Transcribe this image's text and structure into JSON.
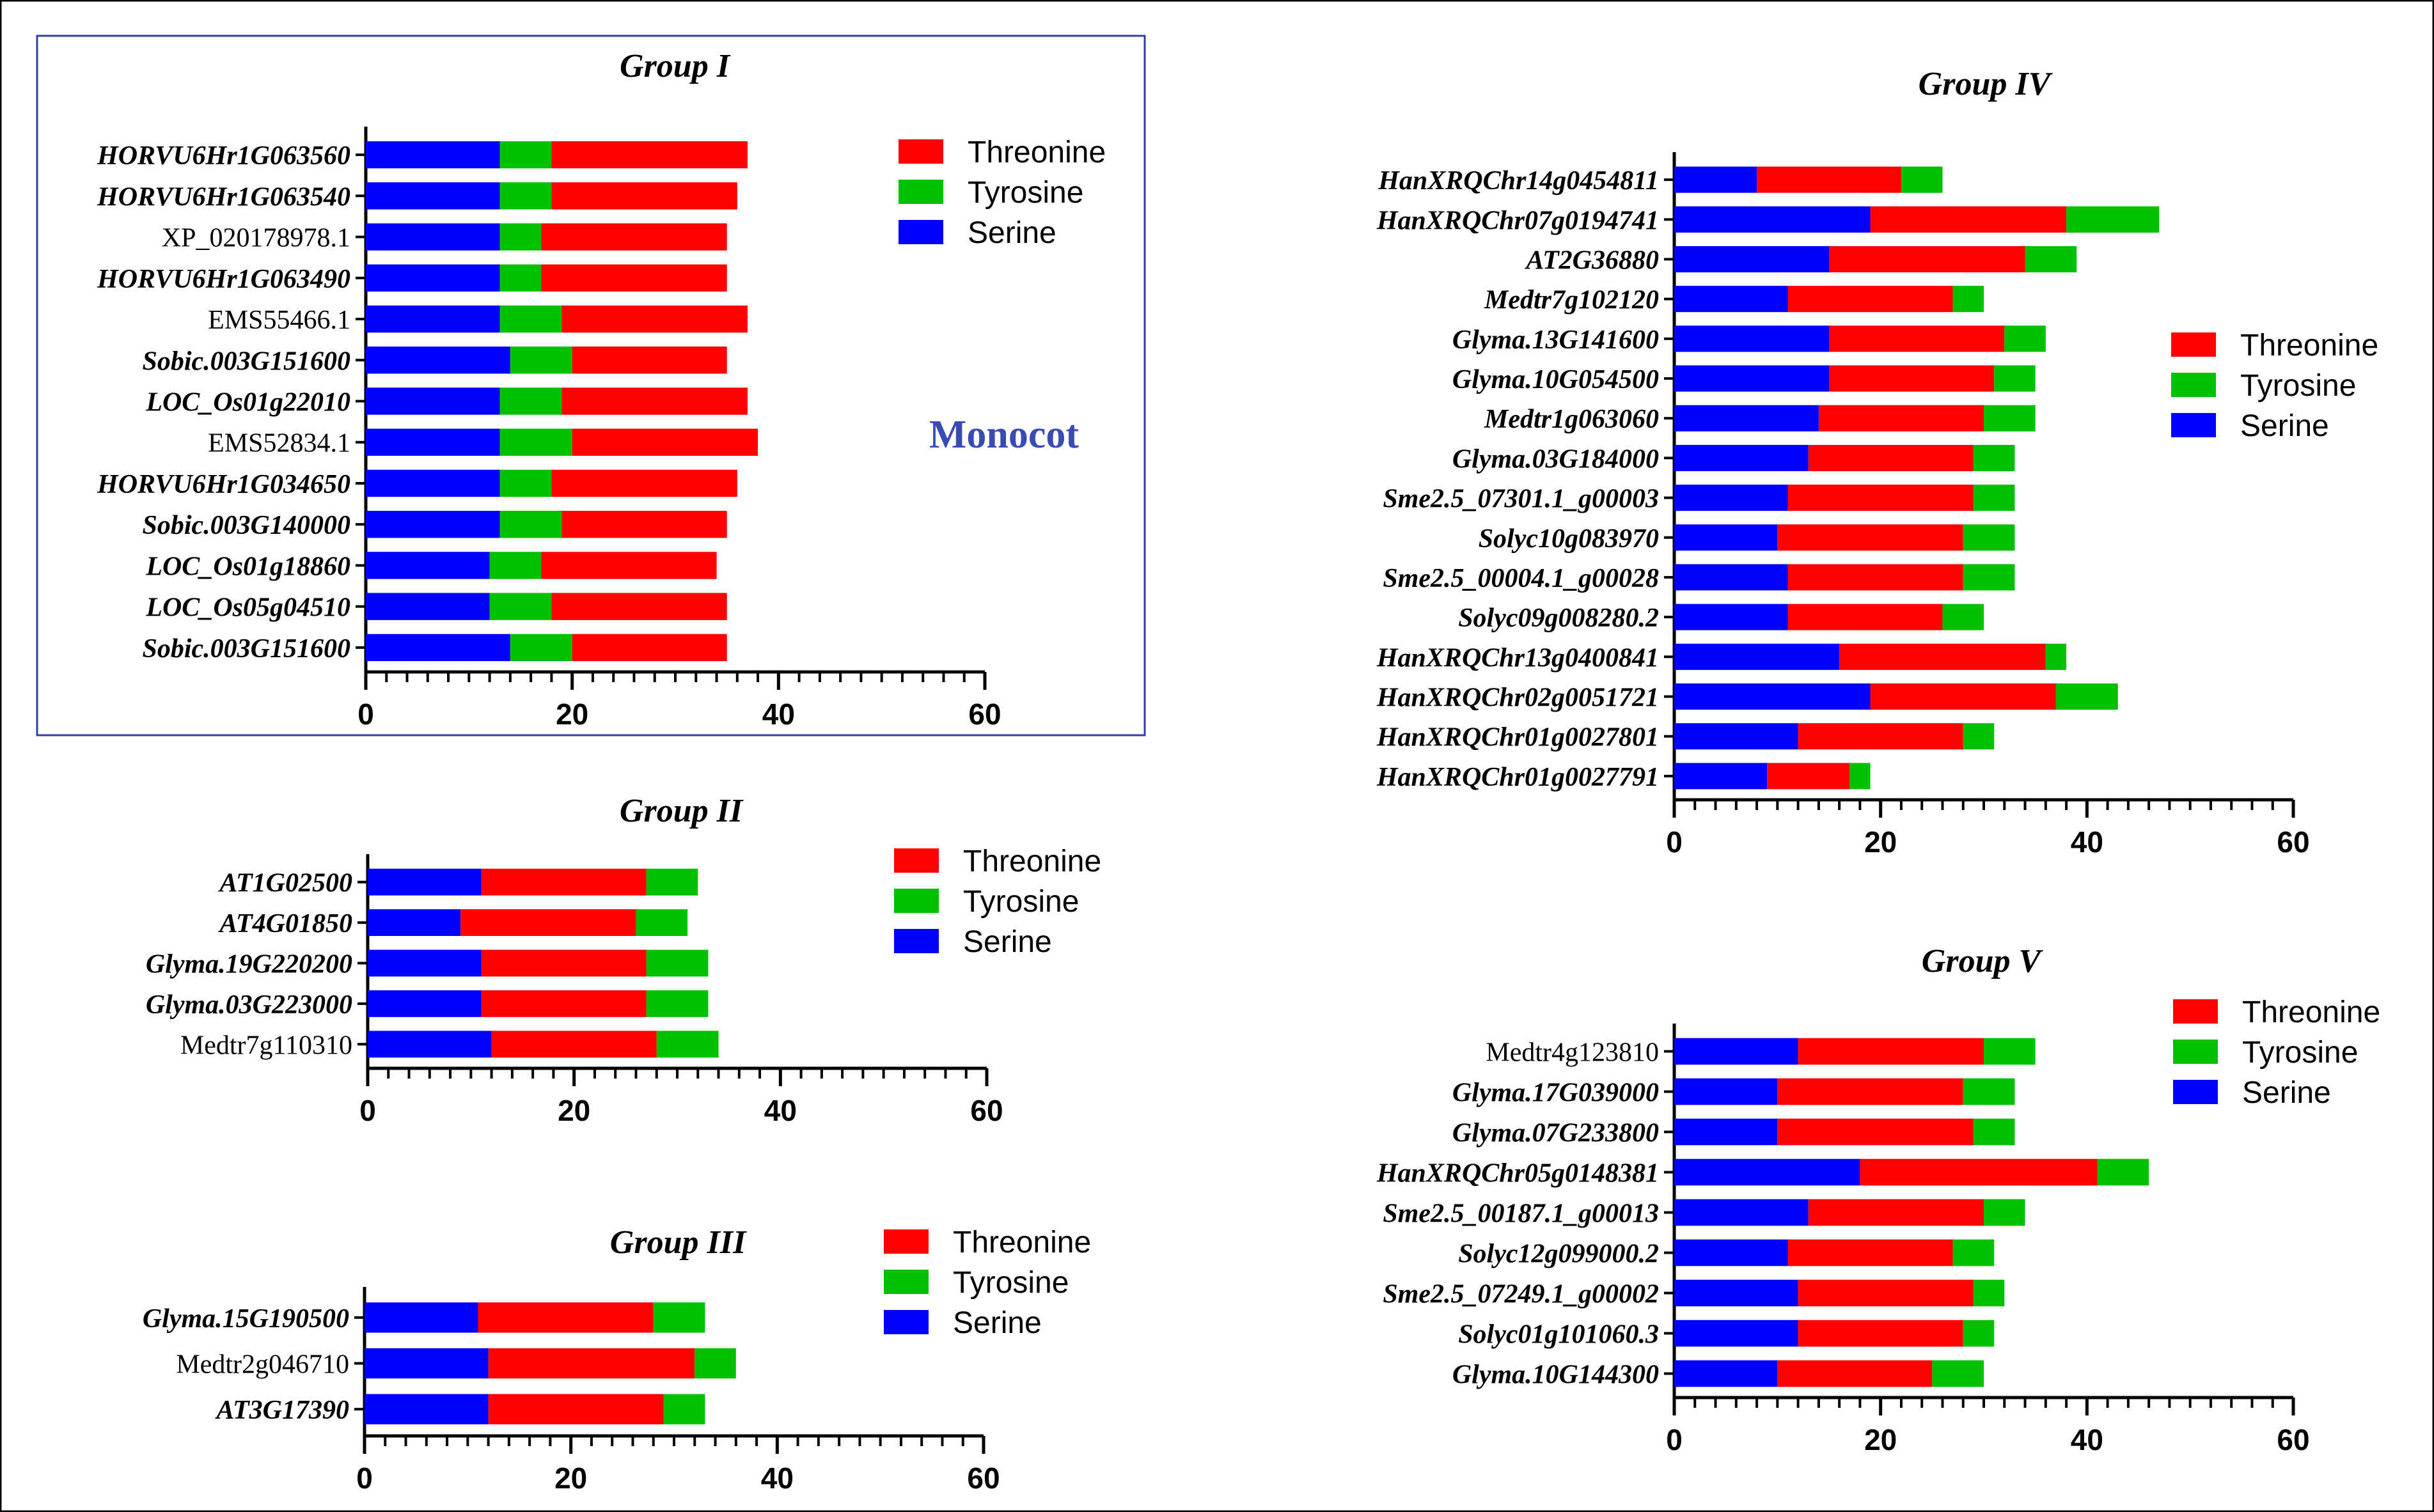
{
  "chart_data": [
    {
      "type": "bar",
      "stacked": true,
      "orientation": "horizontal",
      "title": "Group I",
      "annotation": "Monocot",
      "categories": [
        "HORVU6Hr1G063560",
        "HORVU6Hr1G063540",
        "XP_020178978.1",
        "HORVU6Hr1G063490",
        "EMS55466.1",
        "Sobic.003G151600",
        "LOC_Os01g22010",
        "EMS52834.1",
        "HORVU6Hr1G034650",
        "Sobic.003G140000",
        "LOC_Os01g18860",
        "LOC_Os05g04510",
        "Sobic.003G151600"
      ],
      "italic": [
        true,
        true,
        false,
        true,
        false,
        true,
        true,
        false,
        true,
        true,
        true,
        true,
        true
      ],
      "series": [
        {
          "name": "Serine",
          "color": "#0000ff",
          "values": [
            13,
            13,
            13,
            13,
            13,
            14,
            13,
            13,
            13,
            13,
            12,
            12,
            14
          ]
        },
        {
          "name": "Tyrosine",
          "color": "#00c000",
          "values": [
            5,
            5,
            4,
            4,
            6,
            6,
            6,
            7,
            5,
            6,
            5,
            6,
            6
          ]
        },
        {
          "name": "Threonine",
          "color": "#ff0000",
          "values": [
            19,
            18,
            18,
            18,
            18,
            15,
            18,
            18,
            18,
            16,
            17,
            17,
            15
          ]
        }
      ],
      "order": [
        "Serine",
        "Tyrosine",
        "Threonine"
      ],
      "legend": [
        "Threonine",
        "Tyrosine",
        "Serine"
      ],
      "xticks": [
        "0",
        "20",
        "40",
        "60"
      ],
      "xlim": [
        0,
        60
      ]
    },
    {
      "type": "bar",
      "stacked": true,
      "orientation": "horizontal",
      "title": "Group II",
      "categories": [
        "AT1G02500",
        "AT4G01850",
        "Glyma.19G220200",
        "Glyma.03G223000",
        "Medtr7g110310"
      ],
      "italic": [
        true,
        true,
        true,
        true,
        false
      ],
      "series": [
        {
          "name": "Serine",
          "color": "#0000ff",
          "values": [
            11,
            9,
            11,
            11,
            12
          ]
        },
        {
          "name": "Threonine",
          "color": "#ff0000",
          "values": [
            16,
            17,
            16,
            16,
            16
          ]
        },
        {
          "name": "Tyrosine",
          "color": "#00c000",
          "values": [
            5,
            5,
            6,
            6,
            6
          ]
        }
      ],
      "order": [
        "Serine",
        "Threonine",
        "Tyrosine"
      ],
      "legend": [
        "Threonine",
        "Tyrosine",
        "Serine"
      ],
      "xticks": [
        "0",
        "20",
        "40",
        "60"
      ],
      "xlim": [
        0,
        60
      ]
    },
    {
      "type": "bar",
      "stacked": true,
      "orientation": "horizontal",
      "title": "Group III",
      "categories": [
        "Glyma.15G190500",
        "Medtr2g046710",
        "AT3G17390"
      ],
      "italic": [
        true,
        false,
        true
      ],
      "series": [
        {
          "name": "Serine",
          "color": "#0000ff",
          "values": [
            11,
            12,
            12
          ]
        },
        {
          "name": "Threonine",
          "color": "#ff0000",
          "values": [
            17,
            20,
            17
          ]
        },
        {
          "name": "Tyrosine",
          "color": "#00c000",
          "values": [
            5,
            4,
            4
          ]
        }
      ],
      "order": [
        "Serine",
        "Threonine",
        "Tyrosine"
      ],
      "legend": [
        "Threonine",
        "Tyrosine",
        "Serine"
      ],
      "xticks": [
        "0",
        "20",
        "40",
        "60"
      ],
      "xlim": [
        0,
        60
      ]
    },
    {
      "type": "bar",
      "stacked": true,
      "orientation": "horizontal",
      "title": "Group IV",
      "categories": [
        "HanXRQChr14g0454811",
        "HanXRQChr07g0194741",
        "AT2G36880",
        "Medtr7g102120",
        "Glyma.13G141600",
        "Glyma.10G054500",
        "Medtr1g063060",
        "Glyma.03G184000",
        "Sme2.5_07301.1_g00003",
        "Solyc10g083970",
        "Sme2.5_00004.1_g00028",
        "Solyc09g008280.2",
        "HanXRQChr13g0400841",
        "HanXRQChr02g0051721",
        "HanXRQChr01g0027801",
        "HanXRQChr01g0027791"
      ],
      "italic": [
        true,
        true,
        true,
        true,
        true,
        true,
        true,
        true,
        true,
        true,
        true,
        true,
        true,
        true,
        true,
        true
      ],
      "series": [
        {
          "name": "Serine",
          "color": "#0000ff",
          "values": [
            8,
            19,
            15,
            11,
            15,
            15,
            14,
            13,
            11,
            10,
            11,
            11,
            16,
            19,
            12,
            9
          ]
        },
        {
          "name": "Threonine",
          "color": "#ff0000",
          "values": [
            14,
            19,
            19,
            16,
            17,
            16,
            16,
            16,
            18,
            18,
            17,
            15,
            20,
            18,
            16,
            8
          ]
        },
        {
          "name": "Tyrosine",
          "color": "#00c000",
          "values": [
            4,
            9,
            5,
            3,
            4,
            4,
            5,
            4,
            4,
            5,
            5,
            4,
            2,
            6,
            3,
            2
          ]
        }
      ],
      "order": [
        "Serine",
        "Threonine",
        "Tyrosine"
      ],
      "legend": [
        "Threonine",
        "Tyrosine",
        "Serine"
      ],
      "xticks": [
        "0",
        "20",
        "40",
        "60"
      ],
      "xlim": [
        0,
        60
      ]
    },
    {
      "type": "bar",
      "stacked": true,
      "orientation": "horizontal",
      "title": "Group V",
      "categories": [
        "Medtr4g123810",
        "Glyma.17G039000",
        "Glyma.07G233800",
        "HanXRQChr05g0148381",
        "Sme2.5_00187.1_g00013",
        "Solyc12g099000.2",
        "Sme2.5_07249.1_g00002",
        "Solyc01g101060.3",
        "Glyma.10G144300"
      ],
      "italic": [
        false,
        true,
        true,
        true,
        true,
        true,
        true,
        true,
        true
      ],
      "series": [
        {
          "name": "Serine",
          "color": "#0000ff",
          "values": [
            12,
            10,
            10,
            18,
            13,
            11,
            12,
            12,
            10
          ]
        },
        {
          "name": "Threonine",
          "color": "#ff0000",
          "values": [
            18,
            18,
            19,
            23,
            17,
            16,
            17,
            16,
            15
          ]
        },
        {
          "name": "Tyrosine",
          "color": "#00c000",
          "values": [
            5,
            5,
            4,
            5,
            4,
            4,
            3,
            3,
            5
          ]
        }
      ],
      "order": [
        "Serine",
        "Threonine",
        "Tyrosine"
      ],
      "legend": [
        "Threonine",
        "Tyrosine",
        "Serine"
      ],
      "xticks": [
        "0",
        "20",
        "40",
        "60"
      ],
      "xlim": [
        0,
        60
      ]
    }
  ]
}
